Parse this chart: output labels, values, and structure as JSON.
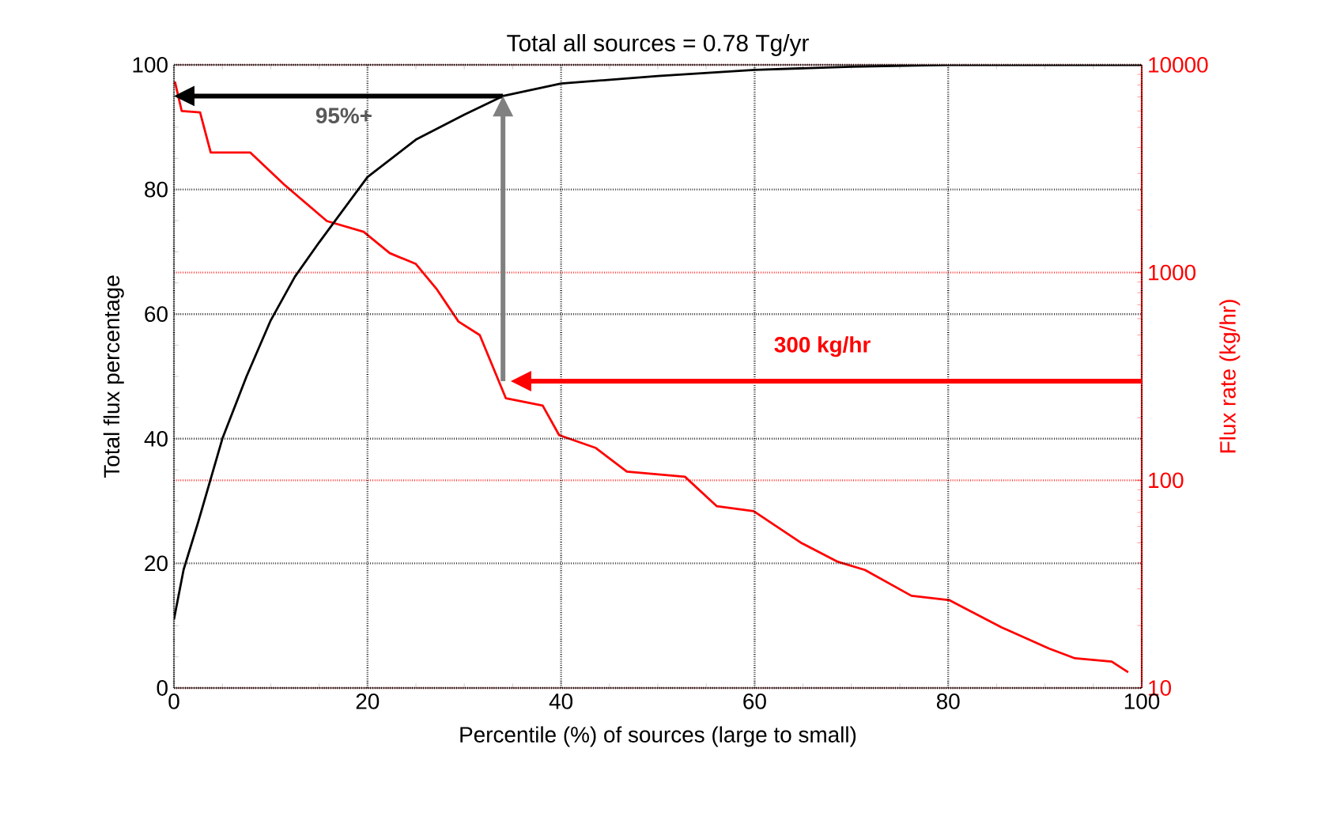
{
  "chart_data": {
    "type": "line",
    "title": "Total all sources =  0.78 Tg/yr",
    "xlabel": "Percentile (%) of sources (large to small)",
    "ylabel": "Total flux percentage",
    "y2label": "Flux rate (kg/hr)",
    "xlim": [
      0,
      100
    ],
    "xticks": [
      0,
      20,
      40,
      60,
      80,
      100
    ],
    "ylim": [
      0,
      100
    ],
    "yticks": [
      0,
      20,
      40,
      60,
      80,
      100
    ],
    "y2lim": [
      10,
      10000
    ],
    "y2ticks": [
      10,
      100,
      1000,
      10000
    ],
    "log": "y2",
    "grid": true,
    "series": [
      {
        "color": "#000000",
        "x": [
          0,
          1,
          2.5,
          5,
          7.5,
          10,
          12.5,
          15,
          20,
          25,
          30,
          34,
          40,
          50,
          60,
          70,
          80,
          90,
          100
        ],
        "values": [
          11,
          19,
          26.6,
          40,
          50,
          59,
          66,
          71.5,
          82,
          88,
          92,
          95,
          97,
          98.2,
          99.2,
          99.7,
          100,
          100,
          100
        ]
      },
      {
        "color": "#ff0000",
        "axis": "y2",
        "x": [
          0.1,
          0.8,
          2.7,
          3.8,
          7.9,
          11.4,
          15.8,
          19.6,
          22.3,
          25.0,
          27.2,
          29.4,
          31.6,
          34.3,
          38.1,
          39.8,
          43.6,
          46.8,
          52.8,
          56.1,
          59.9,
          64.8,
          68.6,
          71.4,
          76.2,
          80.1,
          85.5,
          90.4,
          93.1,
          96.9,
          98.6
        ],
        "values": [
          8300,
          6000,
          5900,
          3780,
          3780,
          2650,
          1770,
          1570,
          1240,
          1100,
          826,
          581,
          500,
          248,
          229,
          165,
          143,
          110,
          104,
          75,
          71,
          50,
          40.5,
          37,
          27.8,
          26.5,
          19.6,
          15.5,
          13.9,
          13.4,
          11.9
        ]
      }
    ],
    "ref_lines": [
      {
        "axis": "y",
        "value": 95,
        "label": "95%+",
        "color": "#000000"
      },
      {
        "axis": "x",
        "value": 34,
        "color": "#808080"
      },
      {
        "axis": "y2",
        "value": 300,
        "label": "300 kg/hr",
        "color": "#ff0000"
      }
    ]
  }
}
